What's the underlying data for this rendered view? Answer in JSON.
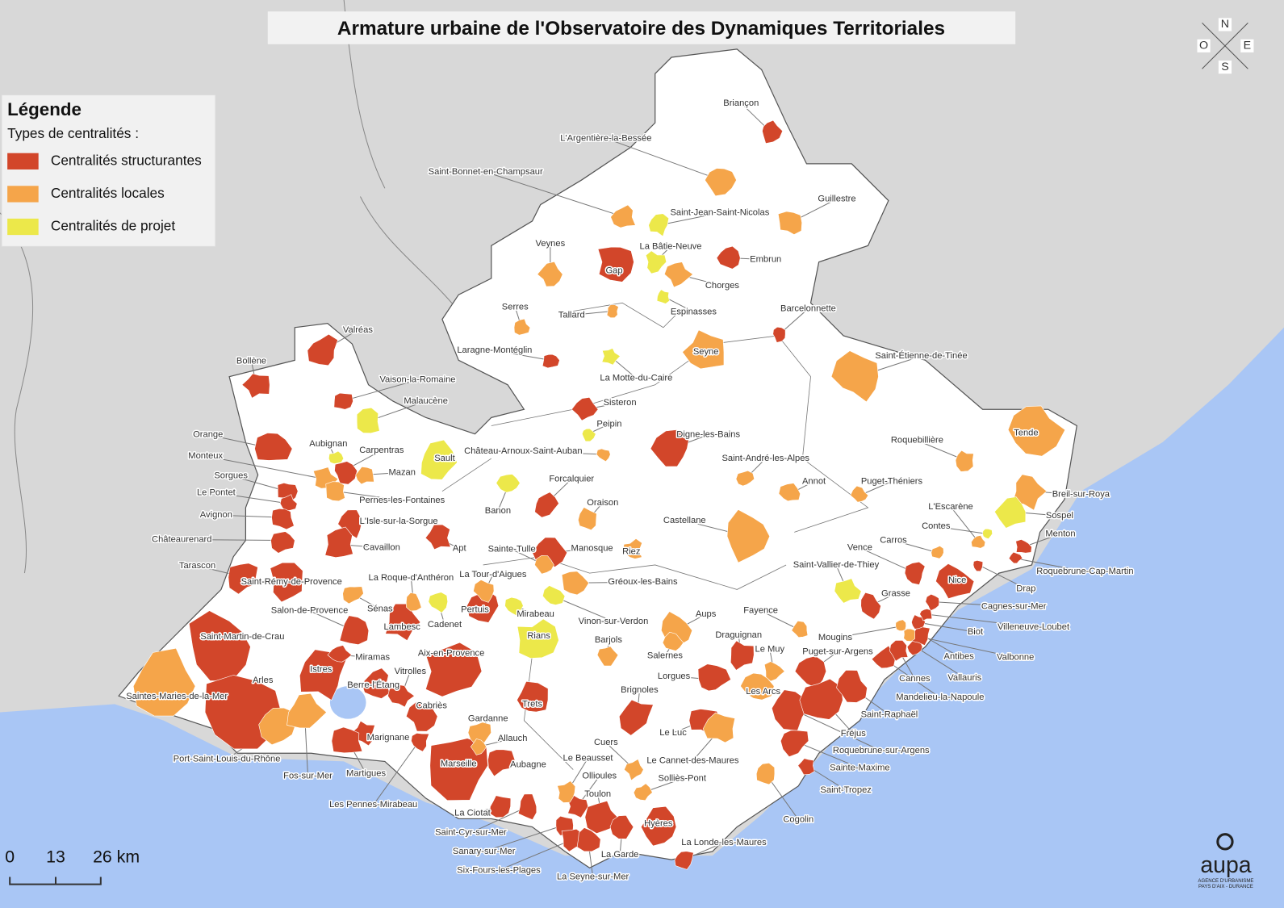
{
  "title": "Armature urbaine de l'Observatoire des Dynamiques Territoriales",
  "legend": {
    "title": "Légende",
    "subtitle": "Types de centralités :"
  },
  "categories": [
    {
      "name": "Centralités structurantes",
      "color": "#d2462a",
      "places": [
        "Briançon",
        "Gap",
        "Embrun",
        "Barcelonnette",
        "Valréas",
        "Bollène",
        "Vaison-la-Romaine",
        "Laragne-Montéglin",
        "Sisteron",
        "Digne-les-Bains",
        "Orange",
        "Carpentras",
        "Sorgues",
        "Le Pontet",
        "Avignon",
        "Châteaurenard",
        "Forcalquier",
        "L'Isle-sur-la-Sorgue",
        "Apt",
        "Cavaillon",
        "Manosque",
        "Tarascon",
        "Saint-Rémy-de-Provence",
        "Pertuis",
        "Lambesc",
        "Salon-de-Provence",
        "Saint-Martin-de-Crau",
        "Arles",
        "Istres",
        "Miramas",
        "Berre-l'Étang",
        "Vitrolles",
        "Aix-en-Provence",
        "Cabriès",
        "Marignane",
        "Martigues",
        "Les Pennes-Mirabeau",
        "Marseille",
        "Aubagne",
        "Trets",
        "La Ciotat",
        "Saint-Cyr-sur-Mer",
        "Ollioules",
        "Sanary-sur-Mer",
        "Six-Fours-les-Plages",
        "La Seyne-sur-Mer",
        "Toulon",
        "La Garde",
        "Hyères",
        "La Londe-les-Maures",
        "Brignoles",
        "Le Luc",
        "Lorgues",
        "Draguignan",
        "Puget-sur-Argens",
        "Roquebrune-sur-Argens",
        "Fréjus",
        "Saint-Raphaël",
        "Sainte-Maxime",
        "Saint-Tropez",
        "Mandelieu-la-Napoule",
        "Cannes",
        "Grasse",
        "Vallauris",
        "Antibes",
        "Biot",
        "Cagnes-sur-Mer",
        "Villeneuve-Loubet",
        "Vence",
        "Nice",
        "Drap",
        "Menton",
        "Roquebrune-Cap-Martin"
      ]
    },
    {
      "name": "Centralités locales",
      "color": "#f5a54a",
      "places": [
        "L'Argentière-la-Bessée",
        "Saint-Bonnet-en-Champsaur",
        "Guillestre",
        "Veynes",
        "Chorges",
        "Tallard",
        "Serres",
        "Seyne",
        "Saint-Étienne-de-Tinée",
        "Tende",
        "Château-Arnoux-Saint-Auban",
        "Monteux",
        "Mazan",
        "Pernes-les-Fontaines",
        "Roquebillière",
        "Saint-André-les-Alpes",
        "Annot",
        "Puget-Théniers",
        "Breil-sur-Roya",
        "Oraison",
        "Castellane",
        "L'Escarène",
        "Carros",
        "Riez",
        "Sainte-Tulle",
        "Gréoux-les-Bains",
        "La Tour-d'Aigues",
        "La Roque-d'Anthéron",
        "Sénas",
        "Aups",
        "Fayence",
        "Barjols",
        "Salernes",
        "Le Muy",
        "Les Arcs",
        "Mougins",
        "Valbonne",
        "Saintes-Maries-de-la-Mer",
        "Port-Saint-Louis-du-Rhône",
        "Fos-sur-Mer",
        "Gardanne",
        "Allauch",
        "Le Cannet-des-Maures",
        "Le Beausset",
        "Cuers",
        "Solliès-Pont",
        "Cogolin"
      ]
    },
    {
      "name": "Centralités de projet",
      "color": "#ece84a",
      "places": [
        "Saint-Jean-Saint-Nicolas",
        "La Bâtie-Neuve",
        "Espinasses",
        "La Motte-du-Caire",
        "Malaucène",
        "Aubignan",
        "Sault",
        "Peipin",
        "Banon",
        "Sospel",
        "Contes",
        "Saint-Vallier-de-Thiey",
        "Mirabeau",
        "Cadenet",
        "Vinon-sur-Verdon",
        "Rians"
      ]
    }
  ],
  "compass": {
    "north": "N",
    "east": "E",
    "south": "S",
    "west": "O"
  },
  "scale_bar": [
    "0",
    "13",
    "26 km"
  ],
  "logo": {
    "name": "aupa",
    "line1": "AGENCE D'URBANISME",
    "line2": "PAYS D'AIX - DURANCE"
  }
}
